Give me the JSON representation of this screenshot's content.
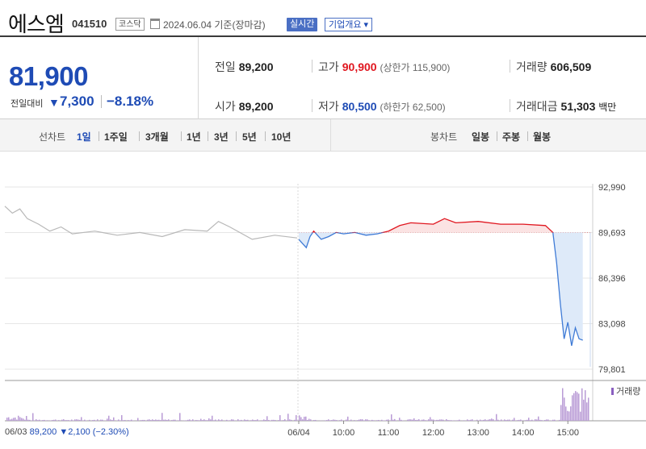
{
  "header": {
    "company_name": "에스엠",
    "stock_code": "041510",
    "market": "코스닥",
    "date_text": "2024.06.04 기준(장마감)",
    "realtime_label": "실시간",
    "overview_label": "기업개요 ▾"
  },
  "quote": {
    "current_price": "81,900",
    "change_label": "전일대비",
    "change_arrow": "▼",
    "change_value": "7,300",
    "change_percent": "−8.18%",
    "prev_close_label": "전일",
    "prev_close": "89,200",
    "high_label": "고가",
    "high": "90,900",
    "upper_limit": "(상한가 115,900)",
    "volume_label": "거래량",
    "volume": "606,509",
    "open_label": "시가",
    "open": "89,200",
    "low_label": "저가",
    "low": "80,500",
    "lower_limit": "(하한가 62,500)",
    "amount_label": "거래대금",
    "amount": "51,303",
    "amount_unit": "백만"
  },
  "tabs": {
    "line_label": "선차트",
    "periods": [
      "1일",
      "1주일",
      "3개월",
      "1년",
      "3년",
      "5년",
      "10년"
    ],
    "active_period": "1일",
    "candle_label": "봉차트",
    "candles": [
      "일봉",
      "주봉",
      "월봉"
    ]
  },
  "prev_day": {
    "date": "06/03",
    "price": "89,200",
    "change": "▼2,100 (−2.30%)"
  },
  "chart_data": {
    "type": "line",
    "ylim": [
      79801,
      92990
    ],
    "yticks": [
      "92,990",
      "89,693",
      "86,396",
      "83,098",
      "79,801"
    ],
    "reference_price": 89693,
    "xticks": [
      "06/04",
      "10:00",
      "11:00",
      "12:00",
      "13:00",
      "14:00",
      "15:00"
    ],
    "volume_label": "거래량",
    "colors": {
      "prev_day": "#b8b8b8",
      "up": "#e0161f",
      "down": "#3f7bd6",
      "up_fill": "#fbe3e3",
      "down_fill": "#deeaf9",
      "volume": "#b99bd6"
    },
    "series": [
      {
        "x": [
          "06/03 09:00",
          "06/03 09:10",
          "06/03 09:20",
          "06/03 09:30",
          "06/03 09:45",
          "06/03 10:00",
          "06/03 10:15",
          "06/03 10:30",
          "06/03 11:00",
          "06/03 11:30",
          "06/03 12:00",
          "06/03 12:30",
          "06/03 13:00",
          "06/03 13:30",
          "06/03 13:45",
          "06/03 14:00",
          "06/03 14:30",
          "06/03 15:00",
          "06/03 15:30"
        ],
        "values": [
          91600,
          91100,
          91400,
          90700,
          90300,
          89800,
          90100,
          89600,
          89800,
          89500,
          89700,
          89400,
          89900,
          89800,
          90500,
          90100,
          89200,
          89500,
          89300
        ]
      },
      {
        "x": [
          "06/04 09:00",
          "06/04 09:05",
          "06/04 09:10",
          "06/04 09:15",
          "06/04 09:20",
          "06/04 09:25",
          "06/04 09:30",
          "06/04 09:40",
          "06/04 09:50",
          "06/04 10:00",
          "06/04 10:15",
          "06/04 10:30",
          "06/04 10:45",
          "06/04 11:00",
          "06/04 11:15",
          "06/04 11:30",
          "06/04 12:00",
          "06/04 12:15",
          "06/04 12:30",
          "06/04 13:00",
          "06/04 13:30",
          "06/04 14:00",
          "06/04 14:30",
          "06/04 14:40",
          "06/04 14:45",
          "06/04 14:50",
          "06/04 14:55",
          "06/04 15:00",
          "06/04 15:05",
          "06/04 15:10",
          "06/04 15:15",
          "06/04 15:20"
        ],
        "values": [
          89200,
          88900,
          88600,
          89400,
          89800,
          89500,
          89200,
          89400,
          89700,
          89600,
          89700,
          89500,
          89600,
          89800,
          90200,
          90400,
          90300,
          90700,
          90400,
          90500,
          90300,
          90300,
          90200,
          89700,
          87500,
          84500,
          82000,
          83200,
          81500,
          82800,
          82000,
          81900
        ]
      }
    ]
  }
}
